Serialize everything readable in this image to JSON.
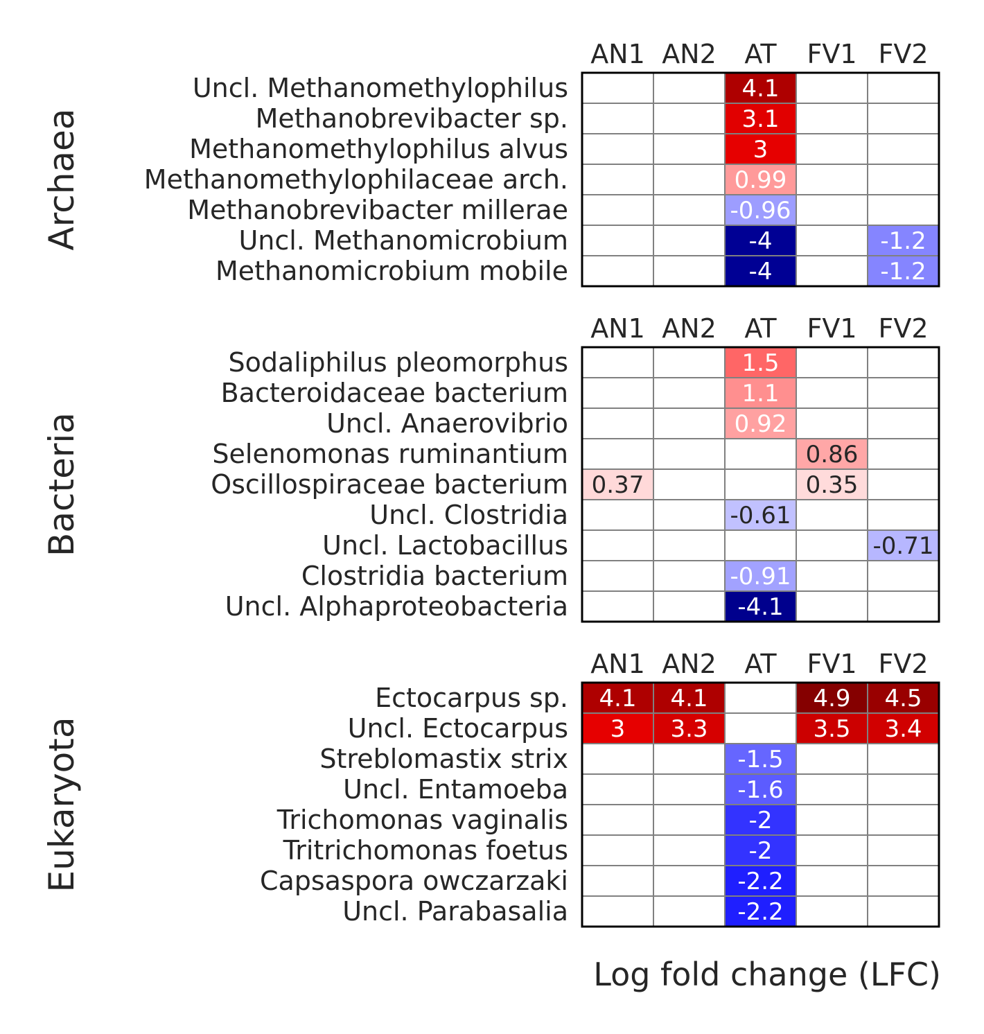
{
  "chart_data": {
    "type": "heatmap",
    "columns": [
      "AN1",
      "AN2",
      "AT",
      "FV1",
      "FV2"
    ],
    "xlabel": "Log fold change (LFC)",
    "panels": [
      {
        "name": "Archaea",
        "rows": [
          "Uncl. Methanomethylophilus",
          "Methanobrevibacter sp.",
          "Methanomethylophilus alvus",
          "Methanomethylophilaceae arch.",
          "Methanobrevibacter millerae",
          "Uncl. Methanomicrobium",
          "Methanomicrobium mobile"
        ],
        "values": [
          [
            null,
            null,
            4.1,
            null,
            null
          ],
          [
            null,
            null,
            3.1,
            null,
            null
          ],
          [
            null,
            null,
            3,
            null,
            null
          ],
          [
            null,
            null,
            0.99,
            null,
            null
          ],
          [
            null,
            null,
            -0.96,
            null,
            null
          ],
          [
            null,
            null,
            -4,
            null,
            -1.2
          ],
          [
            null,
            null,
            -4,
            null,
            -1.2
          ]
        ]
      },
      {
        "name": "Bacteria",
        "rows": [
          "Sodaliphilus pleomorphus",
          "Bacteroidaceae bacterium",
          "Uncl. Anaerovibrio",
          "Selenomonas ruminantium",
          "Oscillospiraceae bacterium",
          "Uncl. Clostridia",
          "Uncl. Lactobacillus",
          "Clostridia bacterium",
          "Uncl. Alphaproteobacteria"
        ],
        "values": [
          [
            null,
            null,
            1.5,
            null,
            null
          ],
          [
            null,
            null,
            1.1,
            null,
            null
          ],
          [
            null,
            null,
            0.92,
            null,
            null
          ],
          [
            null,
            null,
            null,
            0.86,
            null
          ],
          [
            0.37,
            null,
            null,
            0.35,
            null
          ],
          [
            null,
            null,
            -0.61,
            null,
            null
          ],
          [
            null,
            null,
            null,
            null,
            -0.71
          ],
          [
            null,
            null,
            -0.91,
            null,
            null
          ],
          [
            null,
            null,
            -4.1,
            null,
            null
          ]
        ]
      },
      {
        "name": "Eukaryota",
        "rows": [
          "Ectocarpus sp.",
          "Uncl. Ectocarpus",
          "Streblomastix strix",
          "Uncl. Entamoeba",
          "Trichomonas vaginalis",
          "Tritrichomonas foetus",
          "Capsaspora owczarzaki",
          "Uncl. Parabasalia"
        ],
        "values": [
          [
            4.1,
            4.1,
            null,
            4.9,
            4.5
          ],
          [
            3,
            3.3,
            null,
            3.5,
            3.4
          ],
          [
            null,
            null,
            -1.5,
            null,
            null
          ],
          [
            null,
            null,
            -1.6,
            null,
            null
          ],
          [
            null,
            null,
            -2,
            null,
            null
          ],
          [
            null,
            null,
            -2,
            null,
            null
          ],
          [
            null,
            null,
            -2.2,
            null,
            null
          ],
          [
            null,
            null,
            -2.2,
            null,
            null
          ]
        ]
      }
    ],
    "colormap": "seismic",
    "value_range": [
      -5,
      5
    ]
  }
}
